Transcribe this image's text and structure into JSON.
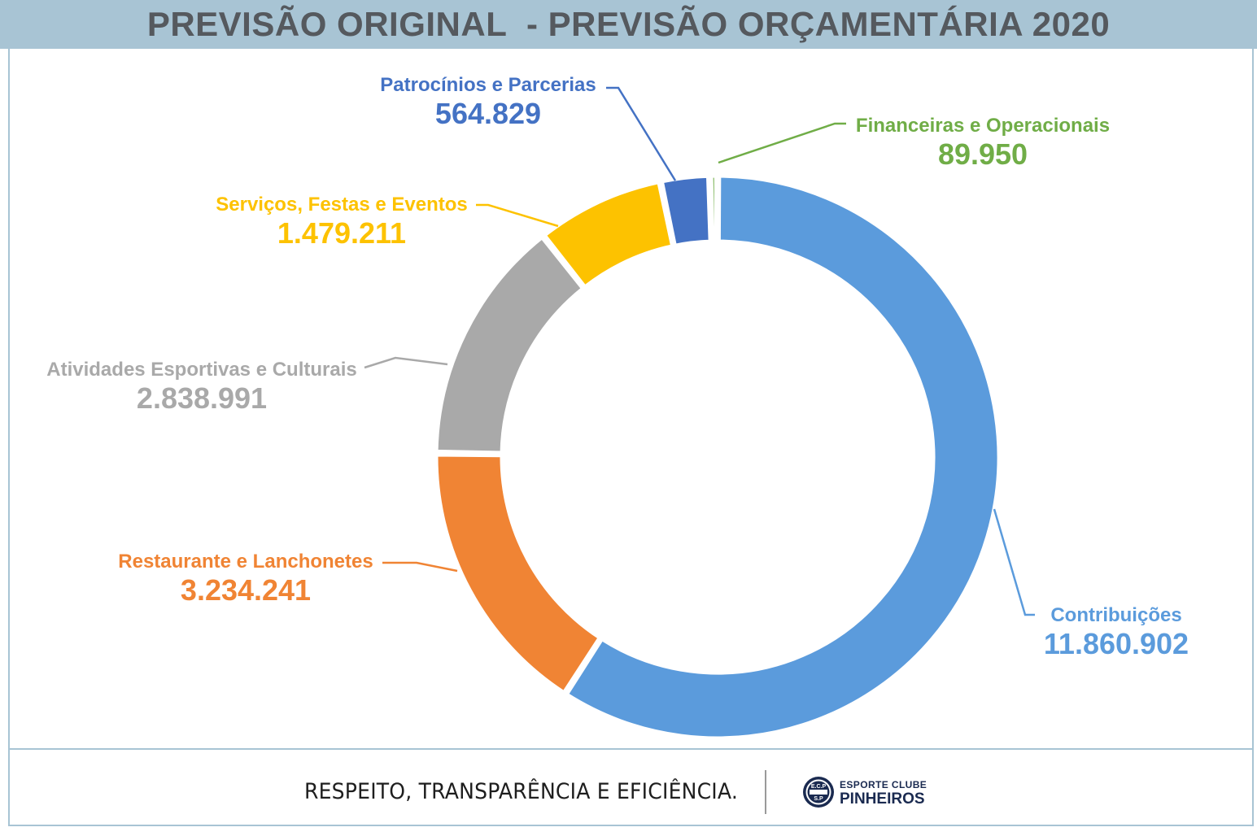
{
  "header": {
    "title": "PREVISÃO ORIGINAL  - PREVISÃO ORÇAMENTÁRIA 2020"
  },
  "chart_data": {
    "type": "pie",
    "variant": "donut",
    "title": "PREVISÃO ORIGINAL  - PREVISÃO ORÇAMENTÁRIA 2020",
    "start_angle_deg": 0,
    "direction": "clockwise",
    "slices": [
      {
        "label": "Contribuições",
        "value": 11860902,
        "display": "11.860.902",
        "color": "#5b9bdc"
      },
      {
        "label": "Restaurante e Lanchonetes",
        "value": 3234241,
        "display": "3.234.241",
        "color": "#f08434"
      },
      {
        "label": "Atividades Esportivas e Culturais",
        "value": 2838991,
        "display": "2.838.991",
        "color": "#a9a9a9"
      },
      {
        "label": "Serviços, Festas e Eventos",
        "value": 1479211,
        "display": "1.479.211",
        "color": "#fdc200"
      },
      {
        "label": "Patrocínios e Parcerias",
        "value": 564829,
        "display": "564.829",
        "color": "#4472c4"
      },
      {
        "label": "Financeiras e Operacionais",
        "value": 89950,
        "display": "89.950",
        "color": "#70ad47"
      }
    ]
  },
  "footer": {
    "slogan": "RESPEITO, TRANSPARÊNCIA E EFICIÊNCIA.",
    "brand_top": "ESPORTE CLUBE",
    "brand_bottom": "PINHEIROS",
    "logo_text_top": "E.C.P",
    "logo_text_bottom": "S.P"
  }
}
